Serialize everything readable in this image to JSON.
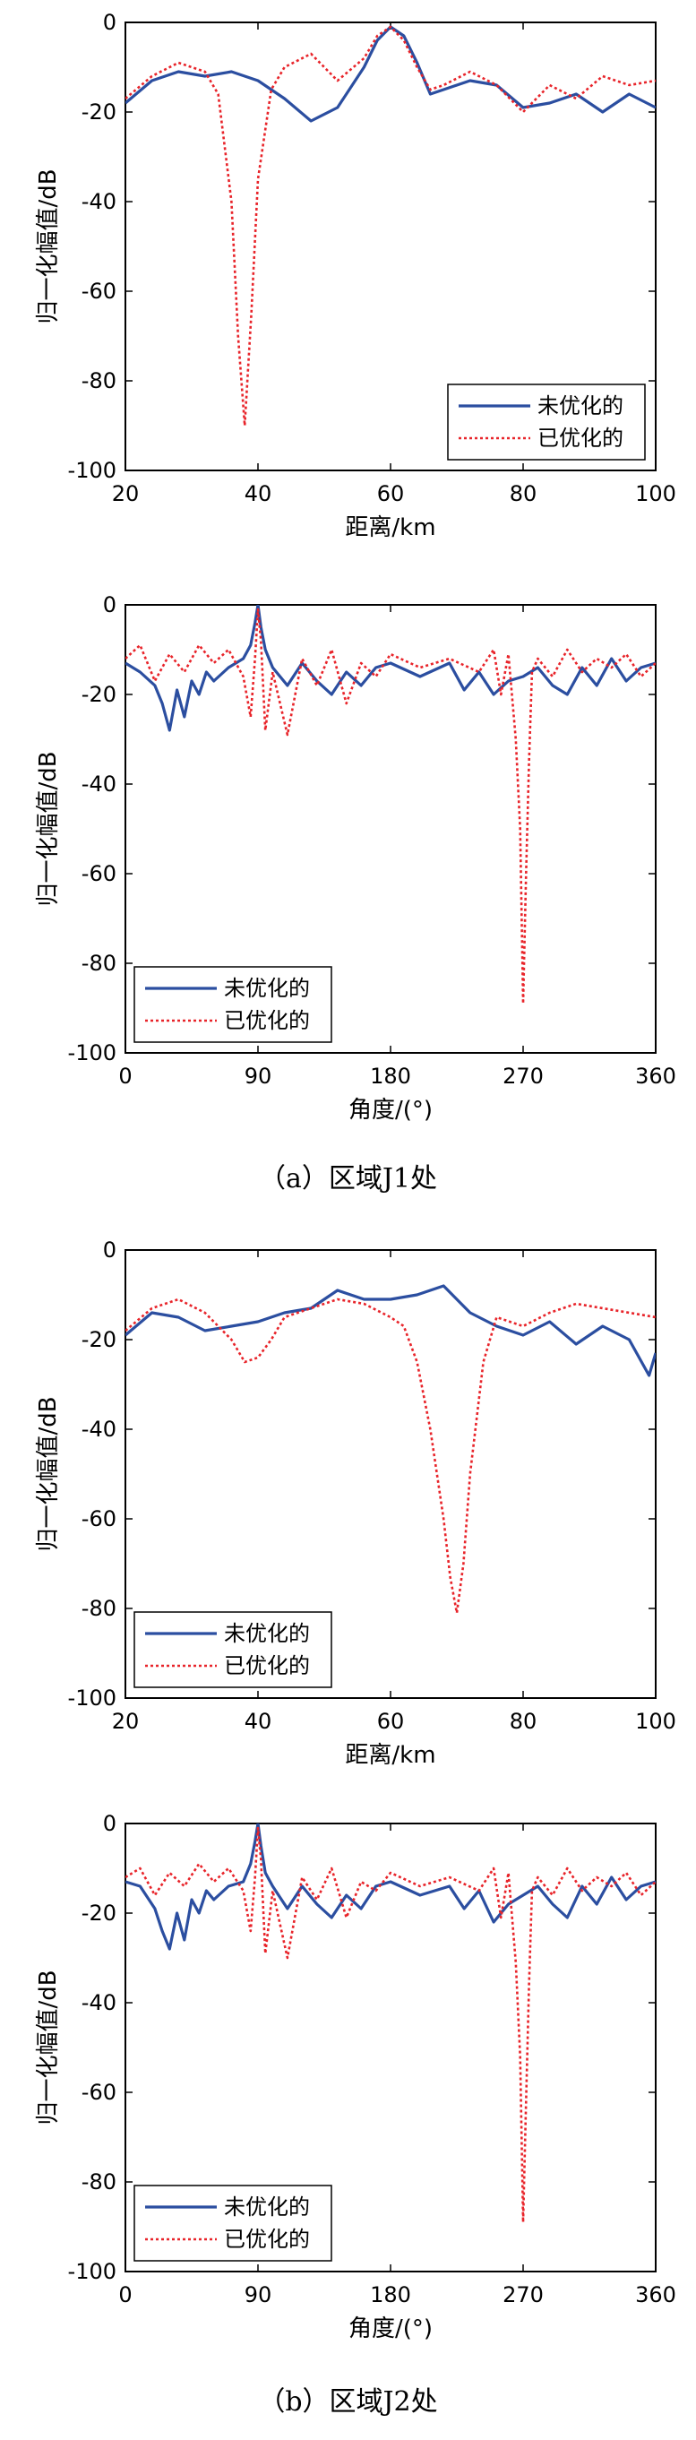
{
  "captions": [
    "（a）区域J1处",
    "（b）区域J2处"
  ],
  "colors": {
    "unoptimized": "#2b4ea0",
    "optimized": "#e8242a"
  },
  "chart_data": [
    {
      "type": "line",
      "xlabel": "距离/km",
      "ylabel": "归一化幅值/dB",
      "xlim": [
        20,
        100
      ],
      "ylim": [
        -100,
        0
      ],
      "xticks": [
        "20",
        "40",
        "60",
        "80",
        "100"
      ],
      "yticks": [
        "0",
        "-20",
        "-40",
        "-60",
        "-80",
        "-100"
      ],
      "legend_position": "bottom-right",
      "series": [
        {
          "name": "未优化的",
          "style": "solid",
          "x": [
            20,
            24,
            28,
            32,
            36,
            40,
            44,
            48,
            52,
            56,
            58,
            60,
            62,
            64,
            66,
            68,
            72,
            76,
            80,
            84,
            88,
            92,
            96,
            100
          ],
          "y": [
            -18,
            -13,
            -11,
            -12,
            -11,
            -13,
            -17,
            -22,
            -19,
            -10,
            -4,
            -1,
            -3,
            -9,
            -16,
            -15,
            -13,
            -14,
            -19,
            -18,
            -16,
            -20,
            -16,
            -19
          ]
        },
        {
          "name": "已优化的",
          "style": "dotted",
          "x": [
            20,
            24,
            28,
            32,
            34,
            36,
            37,
            38,
            39,
            40,
            42,
            44,
            48,
            52,
            56,
            58,
            60,
            62,
            64,
            66,
            68,
            72,
            76,
            80,
            84,
            88,
            92,
            96,
            100
          ],
          "y": [
            -17,
            -12,
            -9,
            -11,
            -16,
            -40,
            -70,
            -90,
            -65,
            -35,
            -15,
            -10,
            -7,
            -13,
            -8,
            -3,
            -1,
            -4,
            -10,
            -15,
            -14,
            -11,
            -14,
            -20,
            -14,
            -17,
            -12,
            -14,
            -13
          ]
        }
      ]
    },
    {
      "type": "line",
      "xlabel": "角度/(°)",
      "ylabel": "归一化幅值/dB",
      "xlim": [
        0,
        360
      ],
      "ylim": [
        -100,
        0
      ],
      "xticks": [
        "0",
        "90",
        "180",
        "270",
        "360"
      ],
      "yticks": [
        "0",
        "-20",
        "-40",
        "-60",
        "-80",
        "-100"
      ],
      "legend_position": "bottom-left",
      "series": [
        {
          "name": "未优化的",
          "style": "solid",
          "x": [
            0,
            10,
            20,
            25,
            30,
            35,
            40,
            45,
            50,
            55,
            60,
            70,
            80,
            85,
            88,
            90,
            92,
            95,
            100,
            110,
            120,
            130,
            140,
            150,
            160,
            170,
            180,
            200,
            220,
            230,
            240,
            250,
            260,
            270,
            280,
            290,
            300,
            310,
            320,
            330,
            340,
            350,
            360
          ],
          "y": [
            -13,
            -15,
            -18,
            -22,
            -28,
            -19,
            -25,
            -17,
            -20,
            -15,
            -17,
            -14,
            -12,
            -9,
            -4,
            0,
            -5,
            -10,
            -14,
            -18,
            -13,
            -17,
            -20,
            -15,
            -18,
            -14,
            -13,
            -16,
            -13,
            -19,
            -15,
            -20,
            -17,
            -16,
            -14,
            -18,
            -20,
            -14,
            -18,
            -12,
            -17,
            -14,
            -13
          ]
        },
        {
          "name": "已优化的",
          "style": "dotted",
          "x": [
            0,
            10,
            20,
            30,
            40,
            50,
            60,
            70,
            80,
            85,
            88,
            90,
            92,
            95,
            100,
            110,
            120,
            130,
            140,
            150,
            160,
            170,
            180,
            200,
            220,
            240,
            250,
            255,
            260,
            265,
            268,
            270,
            272,
            274,
            276,
            280,
            290,
            300,
            310,
            320,
            330,
            340,
            350,
            360
          ],
          "y": [
            -12,
            -9,
            -17,
            -11,
            -15,
            -9,
            -13,
            -10,
            -16,
            -25,
            -12,
            -1,
            -8,
            -28,
            -15,
            -29,
            -12,
            -18,
            -10,
            -22,
            -13,
            -16,
            -11,
            -14,
            -12,
            -15,
            -10,
            -20,
            -11,
            -30,
            -50,
            -89,
            -60,
            -35,
            -15,
            -12,
            -16,
            -10,
            -15,
            -12,
            -14,
            -11,
            -16,
            -13
          ]
        }
      ]
    },
    {
      "type": "line",
      "xlabel": "距离/km",
      "ylabel": "归一化幅值/dB",
      "xlim": [
        20,
        100
      ],
      "ylim": [
        -100,
        0
      ],
      "xticks": [
        "20",
        "40",
        "60",
        "80",
        "100"
      ],
      "yticks": [
        "0",
        "-20",
        "-40",
        "-60",
        "-80",
        "-100"
      ],
      "legend_position": "bottom-left",
      "series": [
        {
          "name": "未优化的",
          "style": "solid",
          "x": [
            20,
            24,
            28,
            32,
            36,
            40,
            44,
            48,
            52,
            56,
            60,
            64,
            68,
            72,
            76,
            80,
            84,
            88,
            92,
            96,
            99,
            100
          ],
          "y": [
            -19,
            -14,
            -15,
            -18,
            -17,
            -16,
            -14,
            -13,
            -9,
            -11,
            -11,
            -10,
            -8,
            -14,
            -17,
            -19,
            -16,
            -21,
            -17,
            -20,
            -28,
            -23
          ]
        },
        {
          "name": "已优化的",
          "style": "dotted",
          "x": [
            20,
            24,
            28,
            32,
            36,
            38,
            40,
            42,
            44,
            48,
            52,
            56,
            60,
            62,
            64,
            66,
            68,
            69,
            70,
            71,
            72,
            74,
            76,
            80,
            84,
            88,
            92,
            96,
            100
          ],
          "y": [
            -18,
            -13,
            -11,
            -14,
            -20,
            -25,
            -24,
            -20,
            -15,
            -13,
            -11,
            -12,
            -15,
            -17,
            -25,
            -40,
            -60,
            -73,
            -81,
            -70,
            -50,
            -25,
            -15,
            -17,
            -14,
            -12,
            -13,
            -14,
            -15
          ]
        }
      ]
    },
    {
      "type": "line",
      "xlabel": "角度/(°)",
      "ylabel": "归一化幅值/dB",
      "xlim": [
        0,
        360
      ],
      "ylim": [
        -100,
        0
      ],
      "xticks": [
        "0",
        "90",
        "180",
        "270",
        "360"
      ],
      "yticks": [
        "0",
        "-20",
        "-40",
        "-60",
        "-80",
        "-100"
      ],
      "legend_position": "bottom-left",
      "series": [
        {
          "name": "未优化的",
          "style": "solid",
          "x": [
            0,
            10,
            20,
            25,
            30,
            35,
            40,
            45,
            50,
            55,
            60,
            70,
            80,
            85,
            88,
            90,
            92,
            95,
            100,
            110,
            120,
            130,
            140,
            150,
            160,
            170,
            180,
            200,
            220,
            230,
            240,
            250,
            260,
            270,
            280,
            290,
            300,
            310,
            320,
            330,
            340,
            350,
            360
          ],
          "y": [
            -13,
            -14,
            -19,
            -24,
            -28,
            -20,
            -26,
            -17,
            -20,
            -15,
            -17,
            -14,
            -13,
            -9,
            -4,
            0,
            -5,
            -11,
            -14,
            -19,
            -14,
            -18,
            -21,
            -16,
            -19,
            -14,
            -13,
            -16,
            -14,
            -19,
            -15,
            -22,
            -18,
            -16,
            -14,
            -18,
            -21,
            -14,
            -18,
            -12,
            -17,
            -14,
            -13
          ]
        },
        {
          "name": "已优化的",
          "style": "dotted",
          "x": [
            0,
            10,
            20,
            30,
            40,
            50,
            60,
            70,
            80,
            85,
            88,
            90,
            92,
            95,
            100,
            110,
            120,
            130,
            140,
            150,
            160,
            170,
            180,
            200,
            220,
            240,
            250,
            255,
            260,
            265,
            268,
            270,
            272,
            274,
            276,
            280,
            290,
            300,
            310,
            320,
            330,
            340,
            350,
            360
          ],
          "y": [
            -12,
            -10,
            -16,
            -11,
            -14,
            -9,
            -13,
            -10,
            -15,
            -24,
            -12,
            -1,
            -8,
            -29,
            -15,
            -30,
            -12,
            -17,
            -10,
            -21,
            -13,
            -15,
            -11,
            -14,
            -12,
            -15,
            -10,
            -21,
            -11,
            -31,
            -52,
            -89,
            -62,
            -36,
            -15,
            -12,
            -16,
            -10,
            -15,
            -12,
            -14,
            -11,
            -16,
            -13
          ]
        }
      ]
    }
  ]
}
